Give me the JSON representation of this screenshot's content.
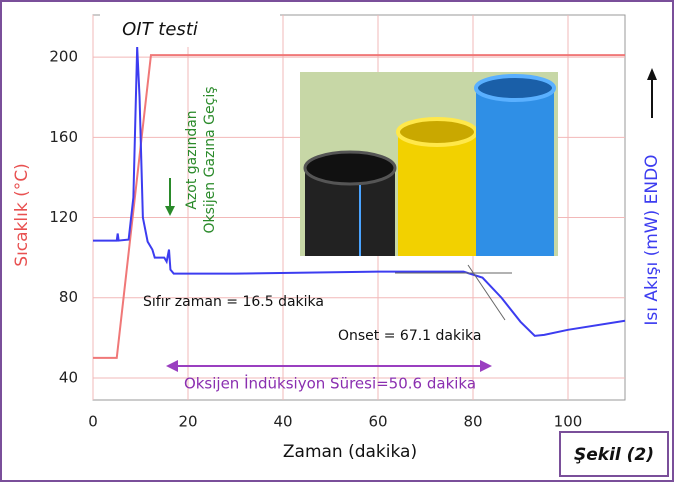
{
  "chart_data": {
    "type": "line",
    "title": "OIT testi",
    "x_label": "Zaman (dakika)",
    "y_label": "Sıcaklık (°C)",
    "y2_label": "Isı Akışı (mW) ENDO",
    "figure_label": "Şekil (2)",
    "annotations": {
      "gas_switch": [
        "Azot gazından",
        "Oksijen Gazına Geçiş"
      ],
      "zero_time": "Sıfır zaman = 16.5 dakika",
      "onset": "Onset = 67.1 dakika",
      "oit": "Oksijen İndüksiyon Süresi=50.6 dakika"
    },
    "xlim": [
      0,
      112
    ],
    "xticks": [
      0,
      20,
      40,
      60,
      80,
      100
    ],
    "ylim": [
      29,
      221
    ],
    "yticks": [
      40,
      80,
      120,
      160,
      200
    ],
    "grid": true,
    "series": [
      {
        "name": "Sıcaklık",
        "color": "#f07878",
        "x": [
          0,
          5,
          12.2,
          112
        ],
        "values": [
          50,
          50,
          201,
          201
        ]
      },
      {
        "name": "Isı Akışı",
        "color": "#3c3cf0",
        "x": [
          0,
          5,
          5.2,
          5.4,
          7.5,
          8.5,
          9.3,
          9.8,
          10.5,
          11.5,
          12.5,
          13,
          15,
          15.5,
          16,
          16.3,
          17,
          30,
          60,
          78,
          82,
          86,
          90,
          93,
          95,
          100,
          112
        ],
        "values": [
          108.5,
          108.5,
          112,
          108.5,
          109,
          130,
          205,
          180,
          120,
          108,
          104,
          100,
          100,
          98,
          104,
          94,
          92,
          92,
          93,
          93,
          90,
          80,
          68,
          61,
          61.5,
          64,
          68.5
        ]
      }
    ]
  }
}
